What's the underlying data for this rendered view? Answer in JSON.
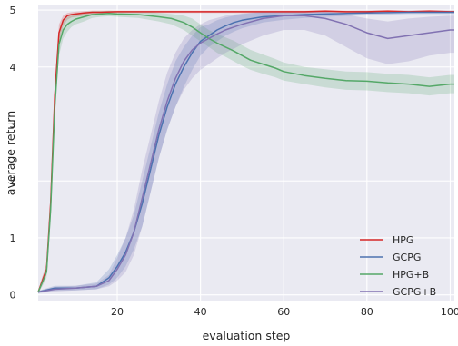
{
  "colors": {
    "background": "#ffffff",
    "plot_area": "#eaeaf2",
    "grid": "#ffffff",
    "text": "#262626"
  },
  "chart_data": {
    "type": "line",
    "title": "",
    "xlabel": "evaluation step",
    "ylabel": "average return",
    "xlim": [
      1,
      101
    ],
    "ylim": [
      -0.1,
      5.08
    ],
    "xticks": [
      20,
      40,
      60,
      80,
      100
    ],
    "yticks": [
      0,
      1,
      2,
      3,
      4,
      5
    ],
    "grid": true,
    "legend": {
      "position": "lower-right"
    },
    "series": [
      {
        "name": "HPG",
        "color": "#d62728",
        "x": [
          1,
          2,
          3,
          4,
          5,
          6,
          7,
          8,
          9,
          10,
          12,
          14,
          16,
          20,
          25,
          30,
          35,
          40,
          45,
          50,
          55,
          60,
          65,
          70,
          75,
          80,
          85,
          90,
          95,
          100,
          101
        ],
        "y": [
          0.05,
          0.25,
          0.45,
          1.6,
          3.5,
          4.6,
          4.82,
          4.9,
          4.92,
          4.93,
          4.95,
          4.96,
          4.96,
          4.97,
          4.97,
          4.97,
          4.97,
          4.97,
          4.97,
          4.97,
          4.97,
          4.97,
          4.97,
          4.98,
          4.97,
          4.97,
          4.98,
          4.97,
          4.98,
          4.97,
          4.97
        ],
        "lower": [
          0.03,
          0.18,
          0.35,
          1.4,
          3.3,
          4.45,
          4.72,
          4.83,
          4.87,
          4.88,
          4.9,
          4.93,
          4.94,
          4.95,
          4.95,
          4.95,
          4.95,
          4.95,
          4.95,
          4.95,
          4.95,
          4.95,
          4.95,
          4.96,
          4.95,
          4.95,
          4.96,
          4.95,
          4.96,
          4.95,
          4.95
        ],
        "upper": [
          0.07,
          0.32,
          0.55,
          1.8,
          3.7,
          4.75,
          4.9,
          4.95,
          4.96,
          4.97,
          4.98,
          4.99,
          4.99,
          4.99,
          4.99,
          4.99,
          4.99,
          4.99,
          4.99,
          4.99,
          4.99,
          4.99,
          4.99,
          5.0,
          4.99,
          4.99,
          5.0,
          4.99,
          5.0,
          4.99,
          4.99
        ]
      },
      {
        "name": "GCPG",
        "color": "#4c72b0",
        "x": [
          1,
          5,
          10,
          15,
          18,
          20,
          22,
          24,
          26,
          28,
          30,
          32,
          34,
          36,
          38,
          40,
          42,
          44,
          46,
          48,
          50,
          55,
          60,
          65,
          70,
          80,
          90,
          95,
          100,
          101
        ],
        "y": [
          0.05,
          0.12,
          0.12,
          0.15,
          0.3,
          0.5,
          0.75,
          1.1,
          1.6,
          2.2,
          2.8,
          3.3,
          3.7,
          4.0,
          4.25,
          4.45,
          4.55,
          4.65,
          4.72,
          4.78,
          4.82,
          4.88,
          4.9,
          4.92,
          4.93,
          4.95,
          4.96,
          4.96,
          4.96,
          4.96
        ],
        "lower": [
          0.03,
          0.08,
          0.08,
          0.1,
          0.18,
          0.3,
          0.5,
          0.8,
          1.2,
          1.8,
          2.4,
          2.9,
          3.3,
          3.65,
          3.95,
          4.2,
          4.35,
          4.45,
          4.55,
          4.62,
          4.68,
          4.78,
          4.83,
          4.86,
          4.88,
          4.91,
          4.93,
          4.93,
          4.93,
          4.93
        ],
        "upper": [
          0.07,
          0.16,
          0.16,
          0.22,
          0.45,
          0.7,
          1.0,
          1.4,
          2.0,
          2.6,
          3.2,
          3.7,
          4.1,
          4.35,
          4.55,
          4.7,
          4.75,
          4.82,
          4.87,
          4.9,
          4.93,
          4.96,
          4.97,
          4.98,
          4.98,
          4.99,
          4.99,
          4.99,
          4.99,
          4.99
        ]
      },
      {
        "name": "HPG+B",
        "color": "#55a868",
        "x": [
          1,
          2,
          3,
          4,
          5,
          6,
          7,
          8,
          9,
          10,
          12,
          14,
          16,
          18,
          20,
          25,
          30,
          33,
          36,
          38,
          40,
          42,
          44,
          46,
          48,
          50,
          52,
          55,
          58,
          60,
          65,
          70,
          75,
          80,
          85,
          90,
          95,
          100,
          101
        ],
        "y": [
          0.05,
          0.22,
          0.4,
          1.5,
          3.3,
          4.4,
          4.65,
          4.75,
          4.8,
          4.84,
          4.88,
          4.92,
          4.93,
          4.94,
          4.93,
          4.92,
          4.88,
          4.85,
          4.78,
          4.7,
          4.6,
          4.5,
          4.42,
          4.35,
          4.28,
          4.2,
          4.12,
          4.05,
          3.98,
          3.92,
          3.85,
          3.8,
          3.76,
          3.75,
          3.72,
          3.7,
          3.66,
          3.7,
          3.7
        ],
        "lower": [
          0.03,
          0.15,
          0.3,
          1.3,
          3.1,
          4.2,
          4.5,
          4.62,
          4.7,
          4.75,
          4.8,
          4.86,
          4.88,
          4.89,
          4.88,
          4.86,
          4.8,
          4.75,
          4.65,
          4.55,
          4.45,
          4.35,
          4.25,
          4.18,
          4.1,
          4.02,
          3.95,
          3.88,
          3.82,
          3.76,
          3.7,
          3.64,
          3.6,
          3.59,
          3.56,
          3.54,
          3.5,
          3.54,
          3.54
        ],
        "upper": [
          0.07,
          0.3,
          0.5,
          1.7,
          3.5,
          4.6,
          4.8,
          4.88,
          4.9,
          4.93,
          4.96,
          4.98,
          4.98,
          4.99,
          4.98,
          4.98,
          4.95,
          4.93,
          4.9,
          4.85,
          4.75,
          4.65,
          4.58,
          4.52,
          4.46,
          4.38,
          4.3,
          4.22,
          4.14,
          4.08,
          4.0,
          3.96,
          3.92,
          3.91,
          3.88,
          3.86,
          3.82,
          3.86,
          3.86
        ]
      },
      {
        "name": "GCPG+B",
        "color": "#8172b2",
        "x": [
          1,
          5,
          10,
          15,
          18,
          20,
          22,
          24,
          26,
          28,
          30,
          32,
          34,
          36,
          38,
          40,
          42,
          44,
          46,
          48,
          50,
          55,
          60,
          65,
          70,
          75,
          80,
          85,
          90,
          95,
          100,
          101
        ],
        "y": [
          0.05,
          0.1,
          0.12,
          0.15,
          0.25,
          0.45,
          0.7,
          1.1,
          1.7,
          2.3,
          2.9,
          3.4,
          3.8,
          4.1,
          4.3,
          4.42,
          4.5,
          4.58,
          4.65,
          4.7,
          4.75,
          4.85,
          4.9,
          4.9,
          4.85,
          4.75,
          4.6,
          4.5,
          4.55,
          4.6,
          4.65,
          4.65
        ],
        "lower": [
          0.03,
          0.06,
          0.08,
          0.1,
          0.15,
          0.25,
          0.4,
          0.7,
          1.2,
          1.8,
          2.4,
          2.9,
          3.3,
          3.6,
          3.8,
          3.95,
          4.05,
          4.15,
          4.25,
          4.32,
          4.4,
          4.55,
          4.65,
          4.65,
          4.55,
          4.35,
          4.15,
          4.05,
          4.1,
          4.2,
          4.25,
          4.25
        ],
        "upper": [
          0.07,
          0.14,
          0.16,
          0.2,
          0.35,
          0.65,
          1.0,
          1.5,
          2.2,
          2.8,
          3.4,
          3.9,
          4.25,
          4.5,
          4.65,
          4.75,
          4.82,
          4.86,
          4.9,
          4.92,
          4.94,
          4.97,
          4.98,
          4.98,
          4.97,
          4.92,
          4.85,
          4.8,
          4.85,
          4.88,
          4.9,
          4.9
        ]
      }
    ]
  }
}
